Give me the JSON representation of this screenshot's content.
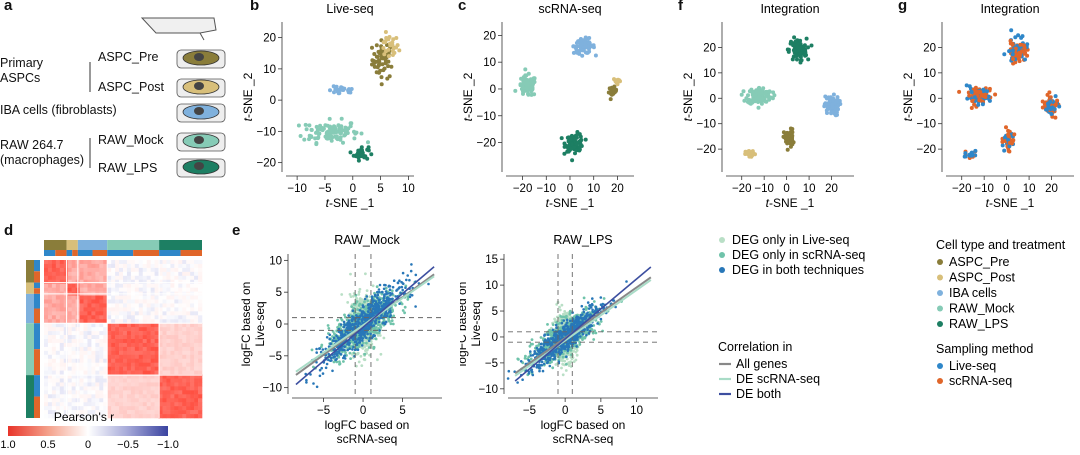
{
  "panel_letters": [
    "a",
    "b",
    "c",
    "f",
    "g",
    "d",
    "e"
  ],
  "panel_a": {
    "group_primary": "Primary\nASPCs",
    "aspc_pre": "ASPC_Pre",
    "aspc_post": "ASPC_Post",
    "iba": "IBA cells (fibroblasts)",
    "raw": "RAW 264.7\n(macrophages)",
    "raw_mock": "RAW_Mock",
    "raw_lps": "RAW_LPS"
  },
  "colors": {
    "aspc_pre": "#8a7d3a",
    "aspc_post": "#d8bf7a",
    "iba": "#7fb1dd",
    "raw_mock": "#86cbb6",
    "raw_lps": "#1d7f63",
    "live_seq": "#2f87c9",
    "scrna_seq": "#e0662a",
    "deg_live": "#b9dfc6",
    "deg_scrna": "#6fc3aa",
    "deg_both": "#2877b8",
    "corr_all": "#888888",
    "corr_de_scrna": "#a9dcc7",
    "corr_de_both": "#3d4fa0"
  },
  "tsne_common": {
    "xlabel": "t-SNE _1",
    "ylabel": "t-SNE _2"
  },
  "chart_data": [
    {
      "id": "b",
      "type": "scatter",
      "title": "Live-seq",
      "xlim": [
        -12,
        11
      ],
      "ylim": [
        -23,
        25
      ],
      "xticks": [
        -10,
        -5,
        0,
        5,
        10
      ],
      "yticks": [
        -20,
        -10,
        0,
        10,
        20
      ],
      "clusters": [
        {
          "group": "aspc_pre",
          "cx": 5.5,
          "cy": 13,
          "sx": 1.8,
          "sy": 5.5,
          "n": 55
        },
        {
          "group": "aspc_post",
          "cx": 6.5,
          "cy": 17,
          "sx": 1.6,
          "sy": 3.5,
          "n": 25
        },
        {
          "group": "iba",
          "cx": -2,
          "cy": 3,
          "sx": 2.2,
          "sy": 1.2,
          "n": 25
        },
        {
          "group": "raw_mock",
          "cx": -4,
          "cy": -10,
          "sx": 4.5,
          "sy": 3.2,
          "n": 110
        },
        {
          "group": "raw_lps",
          "cx": 1.5,
          "cy": -17,
          "sx": 1.2,
          "sy": 2.0,
          "n": 30
        }
      ]
    },
    {
      "id": "c",
      "type": "scatter",
      "title": "scRNA-seq",
      "xlim": [
        -27,
        27
      ],
      "ylim": [
        -31,
        25
      ],
      "xticks": [
        -20,
        -10,
        0,
        10,
        20
      ],
      "yticks": [
        -20,
        -10,
        0,
        10,
        20
      ],
      "clusters": [
        {
          "group": "aspc_pre",
          "cx": 18,
          "cy": -1,
          "sx": 1.5,
          "sy": 1.5,
          "n": 22
        },
        {
          "group": "aspc_post",
          "cx": 20,
          "cy": 3,
          "sx": 1.5,
          "sy": 1.0,
          "n": 18
        },
        {
          "group": "iba",
          "cx": 6,
          "cy": 16,
          "sx": 4.0,
          "sy": 2.5,
          "n": 75
        },
        {
          "group": "raw_mock",
          "cx": -18,
          "cy": 1,
          "sx": 3.5,
          "sy": 3.5,
          "n": 80
        },
        {
          "group": "raw_lps",
          "cx": 2,
          "cy": -20,
          "sx": 3.5,
          "sy": 3.0,
          "n": 85
        }
      ]
    },
    {
      "id": "f",
      "type": "scatter",
      "title": "Integration",
      "xlim": [
        -27,
        30
      ],
      "ylim": [
        -29,
        30
      ],
      "xticks": [
        -20,
        -10,
        0,
        10,
        20
      ],
      "yticks": [
        -20,
        -10,
        0,
        10,
        20
      ],
      "clusters": [
        {
          "group": "raw_lps",
          "cx": 5,
          "cy": 19,
          "sx": 3.5,
          "sy": 4.0,
          "n": 100
        },
        {
          "group": "raw_mock",
          "cx": -12,
          "cy": 1,
          "sx": 5.0,
          "sy": 3.0,
          "n": 110
        },
        {
          "group": "iba",
          "cx": 20,
          "cy": -3,
          "sx": 3.0,
          "sy": 3.5,
          "n": 80
        },
        {
          "group": "aspc_pre",
          "cx": 1,
          "cy": -16,
          "sx": 2.0,
          "sy": 3.5,
          "n": 45
        },
        {
          "group": "aspc_post",
          "cx": -16,
          "cy": -22,
          "sx": 2.0,
          "sy": 1.2,
          "n": 25
        }
      ]
    },
    {
      "id": "g",
      "type": "scatter",
      "title": "Integration",
      "xlim": [
        -27,
        30
      ],
      "ylim": [
        -29,
        30
      ],
      "xticks": [
        -20,
        -10,
        0,
        10,
        20
      ],
      "yticks": [
        -20,
        -10,
        0,
        10,
        20
      ],
      "clusters": [
        {
          "group": "mixed",
          "cx": 5,
          "cy": 19,
          "sx": 3.5,
          "sy": 4.0,
          "n": 100
        },
        {
          "group": "mixed",
          "cx": -12,
          "cy": 1,
          "sx": 5.0,
          "sy": 3.0,
          "n": 110
        },
        {
          "group": "mixed",
          "cx": 20,
          "cy": -3,
          "sx": 3.0,
          "sy": 3.5,
          "n": 80
        },
        {
          "group": "mixed",
          "cx": 1,
          "cy": -16,
          "sx": 2.0,
          "sy": 3.5,
          "n": 45
        },
        {
          "group": "mixed",
          "cx": -16,
          "cy": -22,
          "sx": 2.0,
          "sy": 1.2,
          "n": 25
        }
      ]
    },
    {
      "id": "e1",
      "type": "scatter",
      "title": "RAW_Mock",
      "xlabel": "logFC based on\nscRNA-seq",
      "ylabel": "logFC based on\nLive-seq",
      "xlim": [
        -9,
        10
      ],
      "ylim": [
        -11,
        11
      ],
      "xticks": [
        -5,
        0,
        5
      ],
      "yticks": [
        -10,
        -5,
        0,
        5,
        10
      ],
      "vlines": [
        -1,
        1
      ],
      "hlines": [
        -1,
        1
      ],
      "fit_all": [
        [
          -8.5,
          -8.0
        ],
        [
          9,
          7.8
        ]
      ],
      "fit_de_scrna": [
        [
          -8.5,
          -7.5
        ],
        [
          9,
          7.5
        ]
      ],
      "fit_de_both": [
        [
          -8.5,
          -9.5
        ],
        [
          9,
          9.0
        ]
      ]
    },
    {
      "id": "e2",
      "type": "scatter",
      "title": "RAW_LPS",
      "xlabel": "logFC based on\nscRNA-seq",
      "ylabel": "logFC based on\nLive-seq",
      "xlim": [
        -8,
        13
      ],
      "ylim": [
        -11,
        16
      ],
      "xticks": [
        -5,
        0,
        5,
        10
      ],
      "yticks": [
        -10,
        -5,
        0,
        5,
        10,
        15
      ],
      "vlines": [
        -1,
        1
      ],
      "hlines": [
        -1,
        1
      ],
      "fit_all": [
        [
          -7,
          -7
        ],
        [
          12,
          11.5
        ]
      ],
      "fit_de_scrna": [
        [
          -7,
          -7.5
        ],
        [
          12,
          11.0
        ]
      ],
      "fit_de_both": [
        [
          -7,
          -8.5
        ],
        [
          12,
          13.5
        ]
      ]
    }
  ],
  "heatmap": {
    "colorbar_title": "Pearson's r",
    "colorbar_ticks": [
      "1.0",
      "0.5",
      "0",
      "−0.5",
      "−1.0"
    ],
    "blocks": [
      {
        "group": "aspc_pre",
        "size": 10
      },
      {
        "group": "aspc_post",
        "size": 5
      },
      {
        "group": "iba",
        "size": 13
      },
      {
        "group": "raw_mock",
        "size": 23
      },
      {
        "group": "raw_lps",
        "size": 19
      }
    ]
  },
  "legend_deg": {
    "items": [
      "DEG only in Live-seq",
      "DEG only in scRNA-seq",
      "DEG in both techniques"
    ]
  },
  "legend_corr": {
    "title": "Correlation in",
    "items": [
      "All genes",
      "DE scRNA-seq",
      "DE both"
    ]
  },
  "legend_cell": {
    "title": "Cell type and treatment",
    "items": [
      "ASPC_Pre",
      "ASPC_Post",
      "IBA cells",
      "RAW_Mock",
      "RAW_LPS"
    ]
  },
  "legend_sampling": {
    "title": "Sampling method",
    "items": [
      "Live-seq",
      "scRNA-seq"
    ]
  }
}
